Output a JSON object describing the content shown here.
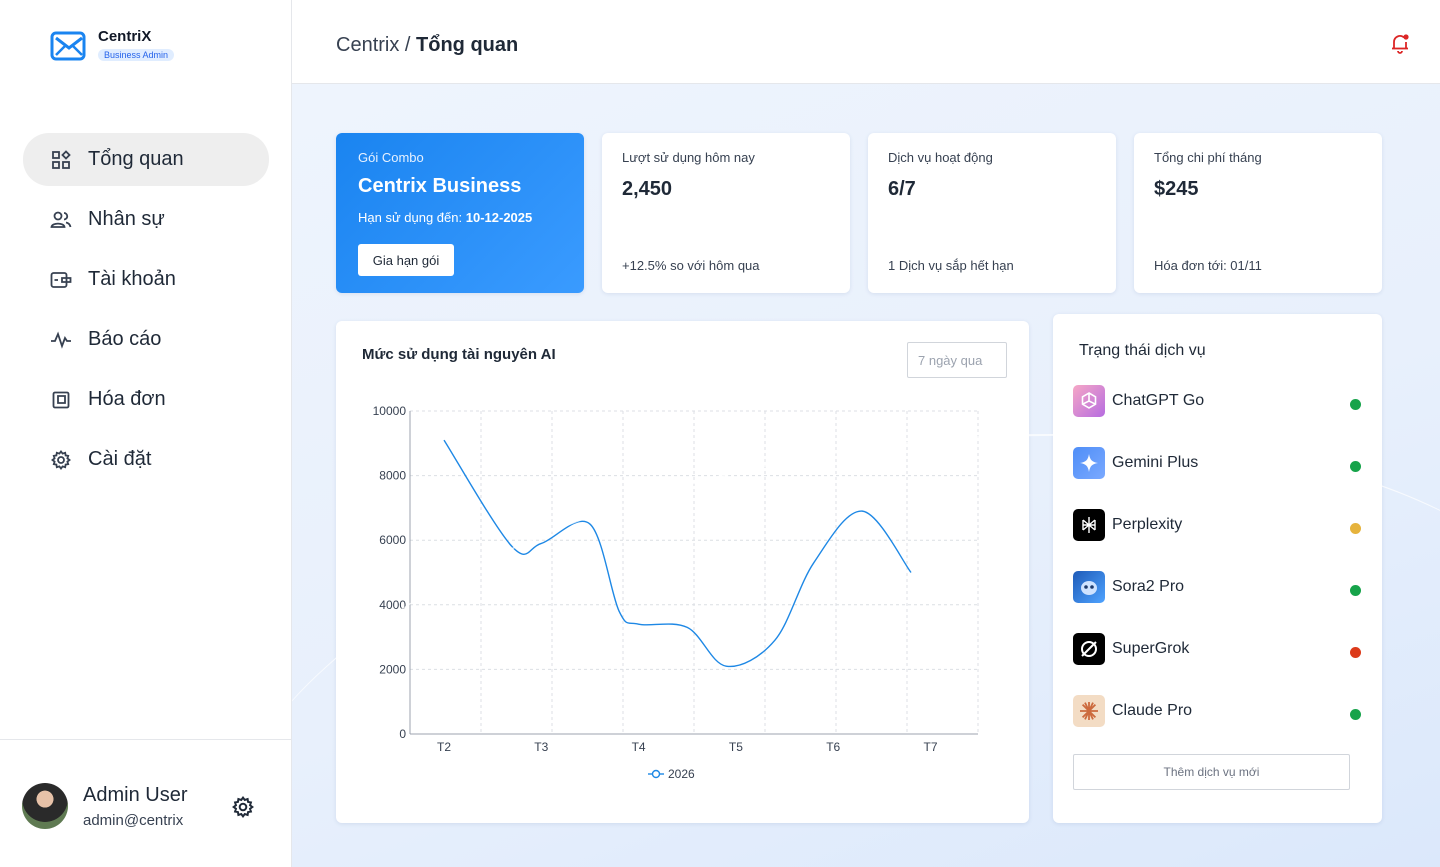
{
  "brand": {
    "name": "CentriX",
    "badge": "Business Admin"
  },
  "nav": [
    {
      "label": "Tổng quan",
      "icon": "dashboard-icon",
      "active": true
    },
    {
      "label": "Nhân sự",
      "icon": "users-icon"
    },
    {
      "label": "Tài khoản",
      "icon": "accounts-icon"
    },
    {
      "label": "Báo cáo",
      "icon": "activity-icon"
    },
    {
      "label": "Hóa đơn",
      "icon": "invoice-icon"
    },
    {
      "label": "Cài đặt",
      "icon": "gear-icon"
    }
  ],
  "user": {
    "name": "Admin User",
    "email": "admin@centrix"
  },
  "header": {
    "root": "Centrix",
    "separator": " / ",
    "current": "Tổng quan"
  },
  "combo": {
    "kicker": "Gói Combo",
    "title": "Centrix Business",
    "expiry_label": "Hạn sử dụng đến: ",
    "expiry_date": "10-12-2025",
    "renew_button": "Gia hạn gói"
  },
  "stats": [
    {
      "label": "Lượt sử dụng hôm nay",
      "value": "2,450",
      "sub": "+12.5% so với hôm qua"
    },
    {
      "label": "Dịch vụ hoạt động",
      "value": "6/7",
      "sub": "1 Dịch vụ sắp hết hạn"
    },
    {
      "label": "Tổng chi phí tháng",
      "value": "$245",
      "sub": "Hóa đơn tới: 01/11"
    }
  ],
  "usage_chart": {
    "title": "Mức sử dụng tài nguyên AI",
    "range_placeholder": "7 ngày qua"
  },
  "chart_data": {
    "type": "line",
    "title": "Mức sử dụng tài nguyên AI",
    "categories": [
      "T2",
      "T3",
      "T4",
      "T5",
      "T6",
      "T7"
    ],
    "x_tick_labels": [
      "T2",
      "T3",
      "T4",
      "T5",
      "T6",
      "T7"
    ],
    "y_ticks": [
      0,
      2000,
      4000,
      6000,
      8000,
      10000
    ],
    "ylim": [
      0,
      10000
    ],
    "grid": true,
    "legend_position": "bottom",
    "series": [
      {
        "name": "2026",
        "color": "#1e88e5",
        "x": [
          0.0,
          0.7,
          1.0,
          1.5,
          1.8,
          2.0,
          2.5,
          2.9,
          3.4,
          3.8,
          4.3,
          4.8
        ],
        "values": [
          9100,
          5800,
          5900,
          6500,
          3800,
          3400,
          3300,
          2100,
          2900,
          5300,
          6900,
          5000
        ]
      }
    ]
  },
  "services": {
    "title": "Trạng thái dịch vụ",
    "items": [
      {
        "name": "ChatGPT Go",
        "icon": "chatgpt-icon",
        "status_color": "#16a34a"
      },
      {
        "name": "Gemini Plus",
        "icon": "gemini-icon",
        "status_color": "#16a34a"
      },
      {
        "name": "Perplexity",
        "icon": "perplexity-icon",
        "status_color": "#e6b33c"
      },
      {
        "name": "Sora2 Pro",
        "icon": "sora-icon",
        "status_color": "#16a34a"
      },
      {
        "name": "SuperGrok",
        "icon": "grok-icon",
        "status_color": "#dc3a1a"
      },
      {
        "name": "Claude Pro",
        "icon": "claude-icon",
        "status_color": "#16a34a"
      }
    ],
    "add_button": "Thêm dịch vụ mới"
  },
  "colors": {
    "accent": "#1a84f0",
    "nav_active_bg": "#eeeeee",
    "main_bg": "#eaf1fc"
  }
}
